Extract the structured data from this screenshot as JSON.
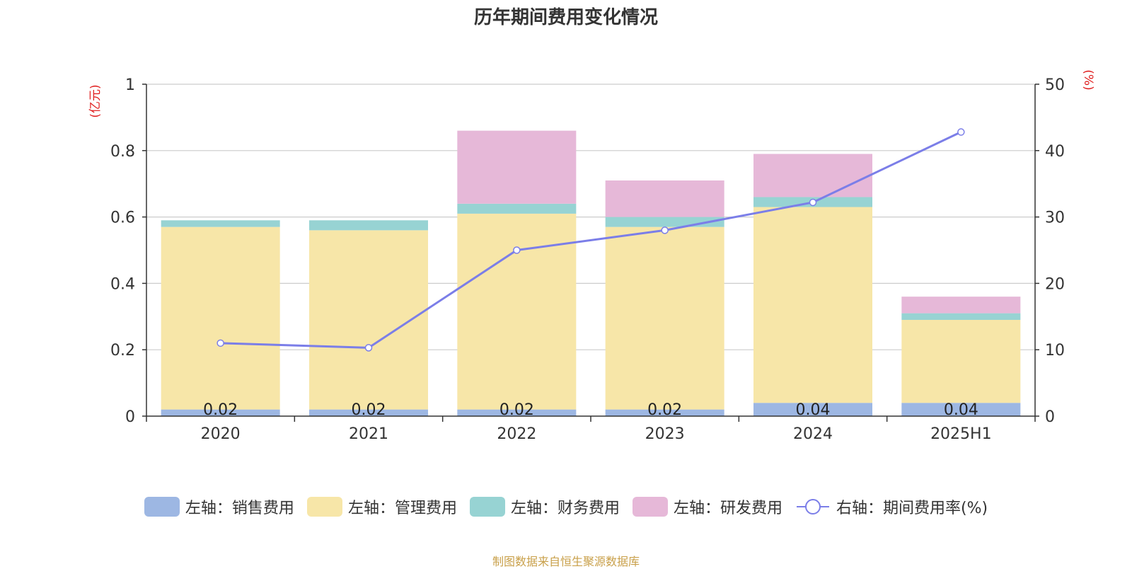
{
  "chart_data": {
    "type": "bar",
    "title": "历年期间费用变化情况",
    "categories": [
      "2020",
      "2021",
      "2022",
      "2023",
      "2024",
      "2025H1"
    ],
    "series": [
      {
        "name": "左轴：销售费用",
        "axis": "left",
        "stack": "cost",
        "color": "#9db7e3",
        "values": [
          0.02,
          0.02,
          0.02,
          0.02,
          0.04,
          0.04
        ]
      },
      {
        "name": "左轴：管理费用",
        "axis": "left",
        "stack": "cost",
        "color": "#f7e6a8",
        "values": [
          0.55,
          0.54,
          0.59,
          0.55,
          0.59,
          0.25
        ]
      },
      {
        "name": "左轴：财务费用",
        "axis": "left",
        "stack": "cost",
        "color": "#97d3d3",
        "values": [
          0.02,
          0.03,
          0.03,
          0.03,
          0.03,
          0.02
        ]
      },
      {
        "name": "左轴：研发费用",
        "axis": "left",
        "stack": "cost",
        "color": "#e6b8d8",
        "values": [
          0,
          0,
          0.22,
          0.11,
          0.13,
          0.05
        ]
      },
      {
        "name": "右轴：期间费用率(%)",
        "axis": "right",
        "type": "line",
        "color": "#7b7ee8",
        "values": [
          11,
          10.3,
          25,
          28,
          32.2,
          42.8
        ]
      }
    ],
    "data_labels": [
      "0.02",
      "0.02",
      "0.02",
      "0.02",
      "0.04",
      "0.04"
    ],
    "left_axis": {
      "label": "(亿元)",
      "min": 0,
      "max": 1,
      "ticks": [
        0,
        0.2,
        0.4,
        0.6,
        0.8,
        1
      ],
      "tick_labels": [
        "0",
        "0.2",
        "0.4",
        "0.6",
        "0.8",
        "1"
      ]
    },
    "right_axis": {
      "label": "(%)",
      "min": 0,
      "max": 50,
      "ticks": [
        0,
        10,
        20,
        30,
        40,
        50
      ],
      "tick_labels": [
        "0",
        "10",
        "20",
        "30",
        "40",
        "50"
      ]
    },
    "grid": true,
    "legend_position": "bottom"
  },
  "source_text": "制图数据来自恒生聚源数据库"
}
